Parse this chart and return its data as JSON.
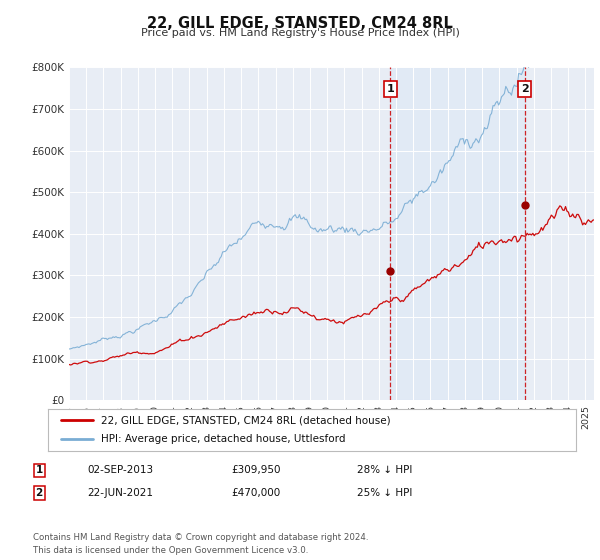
{
  "title": "22, GILL EDGE, STANSTED, CM24 8RL",
  "subtitle": "Price paid vs. HM Land Registry's House Price Index (HPI)",
  "legend_entry1": "22, GILL EDGE, STANSTED, CM24 8RL (detached house)",
  "legend_entry2": "HPI: Average price, detached house, Uttlesford",
  "annotation1_date": "02-SEP-2013",
  "annotation1_price": "£309,950",
  "annotation1_hpi": "28% ↓ HPI",
  "annotation1_year": 2013.67,
  "annotation1_value": 309950,
  "annotation2_date": "22-JUN-2021",
  "annotation2_price": "£470,000",
  "annotation2_hpi": "25% ↓ HPI",
  "annotation2_year": 2021.47,
  "annotation2_value": 470000,
  "color_red": "#cc0000",
  "color_blue": "#7aadd4",
  "color_blue_fill": "#dce8f5",
  "color_vline": "#cc0000",
  "background_chart": "#e8edf5",
  "background_fig": "#ffffff",
  "grid_color": "#ffffff",
  "footer_text": "Contains HM Land Registry data © Crown copyright and database right 2024.\nThis data is licensed under the Open Government Licence v3.0.",
  "xmin": 1995.0,
  "xmax": 2025.5,
  "ymin": 0,
  "ymax": 800000
}
